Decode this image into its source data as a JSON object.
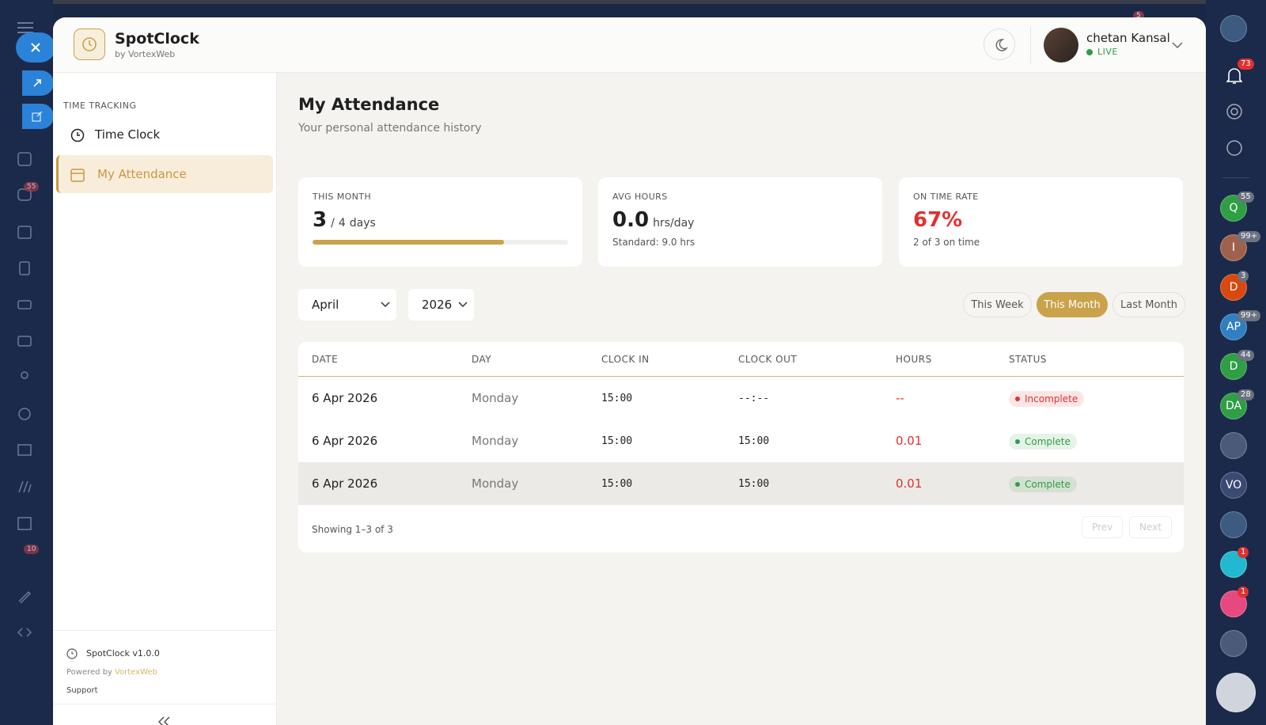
{
  "header": {
    "app_name": "SpotClock",
    "app_by": "by VortexWeb",
    "user_name": "chetan Kansal",
    "user_status": "LIVE",
    "top_badge": "5"
  },
  "nav": {
    "section": "TIME TRACKING",
    "items": [
      "Time Clock",
      "My Attendance"
    ],
    "active": 1,
    "version": "SpotClock v1.0.0",
    "powered_by": "Powered by",
    "powered_link": "VortexWeb",
    "support": "Support"
  },
  "left_rail": {
    "badges": [
      "55",
      "10"
    ]
  },
  "page": {
    "title": "My Attendance",
    "subtitle": "Your personal attendance history"
  },
  "stats": [
    {
      "label": "THIS MONTH",
      "value": 3,
      "sep": "/",
      "total": 4,
      "unit": "days"
    },
    {
      "label": "AVG HOURS",
      "value": "0.0",
      "unit": "hrs/day",
      "note": "Standard: 9.0 hrs"
    },
    {
      "label": "ON TIME RATE",
      "value": "67%",
      "note": "2 of 3 on time"
    }
  ],
  "filters": {
    "month": "April",
    "year": "2026",
    "ranges": [
      "This Week",
      "This Month",
      "Last Month"
    ],
    "active_range": 1
  },
  "table": {
    "columns": [
      "DATE",
      "DAY",
      "CLOCK IN",
      "CLOCK OUT",
      "HOURS",
      "STATUS"
    ],
    "rows": [
      [
        "6 Apr 2026",
        "Monday",
        "15:00",
        "--:--",
        "--",
        "Incomplete"
      ],
      [
        "6 Apr 2026",
        "Monday",
        "15:00",
        "15:00",
        "0.01",
        "Complete"
      ],
      [
        "6 Apr 2026",
        "Monday",
        "15:00",
        "15:00",
        "0.01",
        "Complete"
      ]
    ],
    "status_colors": [
      "#e03131",
      "#2f9e44",
      "#2f9e44"
    ],
    "footer": "Showing 1–3 of 3",
    "prev": "Prev",
    "next": "Next"
  },
  "right_rail": {
    "bell_badge": "73",
    "avatars": [
      {
        "label": "Q",
        "badge": "55",
        "color": "#2f9e44"
      },
      {
        "label": "I",
        "badge": "99+",
        "color": "#a0614c"
      },
      {
        "label": "D",
        "badge": "3",
        "color": "#d9480f"
      },
      {
        "label": "AP",
        "badge": "99+",
        "color": "#2f7fc1"
      },
      {
        "label": "D",
        "badge": "44",
        "color": "#2f9e44"
      },
      {
        "label": "DA",
        "badge": "28",
        "color": "#2f9e44"
      },
      {
        "label": null,
        "badge": null,
        "color": "#4a5a78"
      },
      {
        "label": "VO",
        "badge": null,
        "color": "#3b4a72"
      },
      {
        "label": null,
        "badge": null,
        "color": "#3d5a80"
      }
    ],
    "app_badges": [
      "1",
      "1"
    ]
  }
}
